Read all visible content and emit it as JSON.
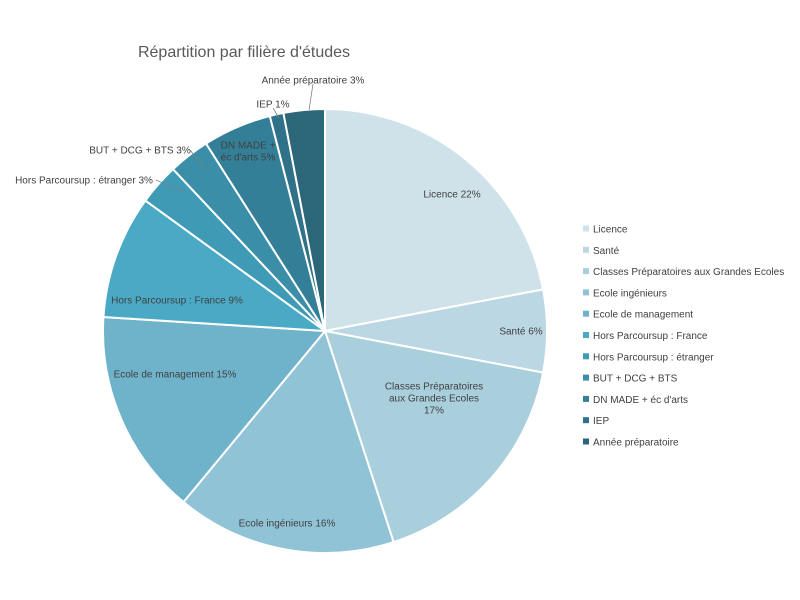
{
  "chart_data": {
    "type": "pie",
    "title": "Répartition par filière d'études",
    "slices": [
      {
        "name": "Licence",
        "value": 22,
        "label": "Licence 22%",
        "color": "#cfe2ea"
      },
      {
        "name": "Santé",
        "value": 6,
        "label": "Santé 6%",
        "color": "#bbd7e3"
      },
      {
        "name": "Classes Préparatoires aux Grandes Ecoles",
        "value": 17,
        "label": "Classes Préparatoires aux Grandes Ecoles 17%",
        "color": "#a9cfdd"
      },
      {
        "name": "Ecole ingénieurs",
        "value": 16,
        "label": "Ecole ingénieurs 16%",
        "color": "#91c3d6"
      },
      {
        "name": "Ecole de management",
        "value": 15,
        "label": "Ecole de management 15%",
        "color": "#6fb3ca"
      },
      {
        "name": "Hors Parcoursup : France",
        "value": 9,
        "label": "Hors Parcoursup : France 9%",
        "color": "#4aaac6"
      },
      {
        "name": "Hors Parcoursup : étranger",
        "value": 3,
        "label": "Hors Parcoursup : étranger 3%",
        "color": "#3f9ab5"
      },
      {
        "name": "BUT + DCG + BTS",
        "value": 3,
        "label": "BUT + DCG + BTS 3%",
        "color": "#3a8ea8"
      },
      {
        "name": "DN MADE + éc d'arts",
        "value": 5,
        "label": "DN MADE + éc d'arts 5%",
        "color": "#347f98"
      },
      {
        "name": "IEP",
        "value": 1,
        "label": "IEP 1%",
        "color": "#2e7189"
      },
      {
        "name": "Année préparatoire",
        "value": 3,
        "label": "Année préparatoire 3%",
        "color": "#2b6679"
      }
    ],
    "legend_position": "right"
  }
}
